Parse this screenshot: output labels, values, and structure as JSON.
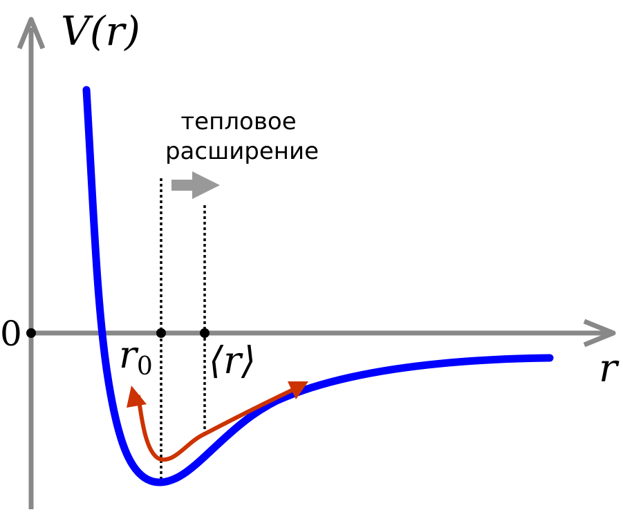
{
  "labels": {
    "y_axis": "V(r)",
    "x_axis": "r",
    "origin": "0",
    "r0_base": "r",
    "r0_sub": "0",
    "mean_r": "⟨r⟩",
    "annotation_line1": "тепловое",
    "annotation_line2": "расширение"
  },
  "colors": {
    "axis": "#888888",
    "potential_curve": "#0000ff",
    "oscillation_arrow": "#cc3300",
    "expansion_arrow": "#999999",
    "markers": "#000000"
  }
}
